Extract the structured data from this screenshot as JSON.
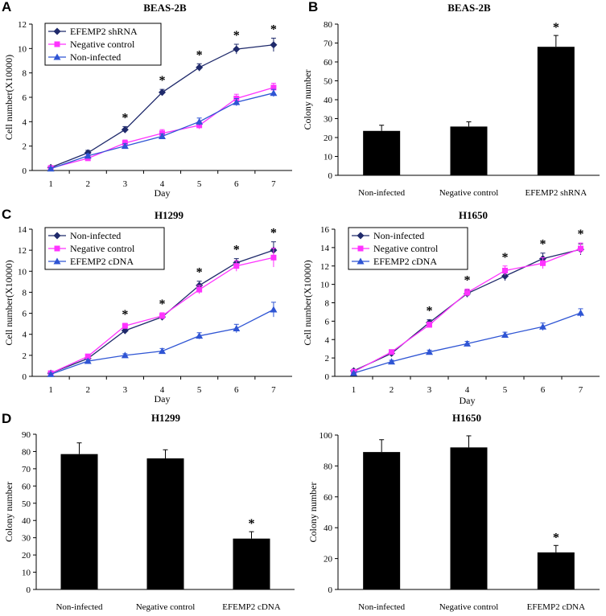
{
  "colors": {
    "navy": "#1f2a6b",
    "magenta": "#ff33ff",
    "blue": "#2f55d4",
    "bar": "#000000"
  },
  "chart_data": [
    {
      "panel": "A",
      "type": "line",
      "title": "BEAS-2B",
      "xlabel": "Day",
      "ylabel": "Cell number(X10000)",
      "x": [
        1,
        2,
        3,
        4,
        5,
        6,
        7
      ],
      "ylim": [
        0,
        12
      ],
      "yticks": [
        0,
        2,
        4,
        6,
        8,
        10,
        12
      ],
      "series": [
        {
          "name": "EFEMP2 shRNA",
          "values": [
            0.25,
            1.45,
            3.35,
            6.4,
            8.45,
            9.95,
            10.3
          ],
          "errors": [
            0.1,
            0.2,
            0.25,
            0.25,
            0.3,
            0.4,
            0.55
          ],
          "marker": "diamond",
          "color": "navy"
        },
        {
          "name": "Negative control",
          "values": [
            0.2,
            1.0,
            2.25,
            3.05,
            3.7,
            5.9,
            6.8
          ],
          "errors": [
            0.1,
            0.15,
            0.25,
            0.3,
            0.3,
            0.35,
            0.35
          ],
          "marker": "square",
          "color": "magenta"
        },
        {
          "name": "Non-infected",
          "values": [
            0.15,
            1.2,
            2.0,
            2.8,
            4.0,
            5.6,
            6.35
          ],
          "errors": [
            0.1,
            0.15,
            0.2,
            0.2,
            0.3,
            0.3,
            0.3
          ],
          "marker": "triangle",
          "color": "blue"
        }
      ],
      "stars": [
        3,
        4,
        5,
        6,
        7
      ],
      "legend_position": "top-left"
    },
    {
      "panel": "B",
      "type": "bar",
      "title": "BEAS-2B",
      "xlabel": "",
      "ylabel": "Colony number",
      "categories": [
        "Non-infected",
        "Negative control",
        "EFEMP2 shRNA"
      ],
      "values": [
        23.5,
        25.8,
        68.0
      ],
      "errors": [
        3.0,
        2.5,
        6.0
      ],
      "ylim": [
        0,
        80
      ],
      "yticks": [
        0,
        10,
        20,
        30,
        40,
        50,
        60,
        70,
        80
      ],
      "stars": [
        2
      ]
    },
    {
      "panel": "C",
      "type": "line",
      "title": "H1299",
      "xlabel": "Day",
      "ylabel": "Cell number(X10000)",
      "x": [
        1,
        2,
        3,
        4,
        5,
        6,
        7
      ],
      "ylim": [
        0,
        14
      ],
      "yticks": [
        0,
        2,
        4,
        6,
        8,
        10,
        12,
        14
      ],
      "series": [
        {
          "name": "Non-infected",
          "values": [
            0.3,
            1.7,
            4.35,
            5.65,
            8.65,
            10.8,
            12.0
          ],
          "errors": [
            0.1,
            0.2,
            0.2,
            0.3,
            0.4,
            0.4,
            0.8
          ],
          "marker": "diamond",
          "color": "navy"
        },
        {
          "name": "Negative control",
          "values": [
            0.3,
            1.9,
            4.8,
            5.75,
            8.25,
            10.5,
            11.3
          ],
          "errors": [
            0.1,
            0.2,
            0.25,
            0.3,
            0.4,
            0.5,
            0.9
          ],
          "marker": "square",
          "color": "magenta"
        },
        {
          "name": "EFEMP2 cDNA",
          "values": [
            0.2,
            1.45,
            2.0,
            2.4,
            3.85,
            4.55,
            6.35
          ],
          "errors": [
            0.1,
            0.15,
            0.15,
            0.25,
            0.3,
            0.4,
            0.7
          ],
          "marker": "triangle",
          "color": "blue"
        }
      ],
      "stars": [
        3,
        4,
        5,
        6,
        7
      ],
      "legend_position": "top-left"
    },
    {
      "panel": "",
      "type": "line",
      "title": "H1650",
      "xlabel": "Day",
      "ylabel": "Cell number(X10000)",
      "x": [
        1,
        2,
        3,
        4,
        5,
        6,
        7
      ],
      "ylim": [
        0,
        16
      ],
      "yticks": [
        0,
        2,
        4,
        6,
        8,
        10,
        12,
        14,
        16
      ],
      "series": [
        {
          "name": "Non-infected",
          "values": [
            0.6,
            2.5,
            5.85,
            9.0,
            10.9,
            12.8,
            13.8
          ],
          "errors": [
            0.1,
            0.2,
            0.3,
            0.4,
            0.5,
            0.6,
            0.6
          ],
          "marker": "diamond",
          "color": "navy"
        },
        {
          "name": "Negative control",
          "values": [
            0.5,
            2.65,
            5.6,
            9.1,
            11.5,
            12.3,
            13.9
          ],
          "errors": [
            0.1,
            0.2,
            0.3,
            0.4,
            0.5,
            0.6,
            0.6
          ],
          "marker": "square",
          "color": "magenta"
        },
        {
          "name": "EFEMP2 cDNA",
          "values": [
            0.35,
            1.6,
            2.65,
            3.55,
            4.5,
            5.4,
            6.9
          ],
          "errors": [
            0.1,
            0.15,
            0.2,
            0.25,
            0.3,
            0.4,
            0.45
          ],
          "marker": "triangle",
          "color": "blue"
        }
      ],
      "stars": [
        3,
        4,
        5,
        6,
        7
      ],
      "legend_position": "top-left"
    },
    {
      "panel": "D",
      "type": "bar",
      "title": "H1299",
      "xlabel": "",
      "ylabel": "Colony number",
      "categories": [
        "Non-infected",
        "Negative control",
        "EFEMP2 cDNA"
      ],
      "values": [
        78.5,
        76.0,
        29.5
      ],
      "errors": [
        6.5,
        5.0,
        4.0
      ],
      "ylim": [
        0,
        90
      ],
      "yticks": [
        0,
        10,
        20,
        30,
        40,
        50,
        60,
        70,
        80,
        90
      ],
      "stars": [
        2
      ]
    },
    {
      "panel": "",
      "type": "bar",
      "title": "H1650",
      "xlabel": "",
      "ylabel": "Colony number",
      "categories": [
        "Non-infected",
        "Negative control",
        "EFEMP2 cDNA"
      ],
      "values": [
        89.0,
        92.0,
        24.0
      ],
      "errors": [
        8.0,
        7.5,
        4.5
      ],
      "ylim": [
        0,
        100
      ],
      "yticks": [
        0,
        20,
        40,
        60,
        80,
        100
      ],
      "stars": [
        2
      ]
    }
  ]
}
